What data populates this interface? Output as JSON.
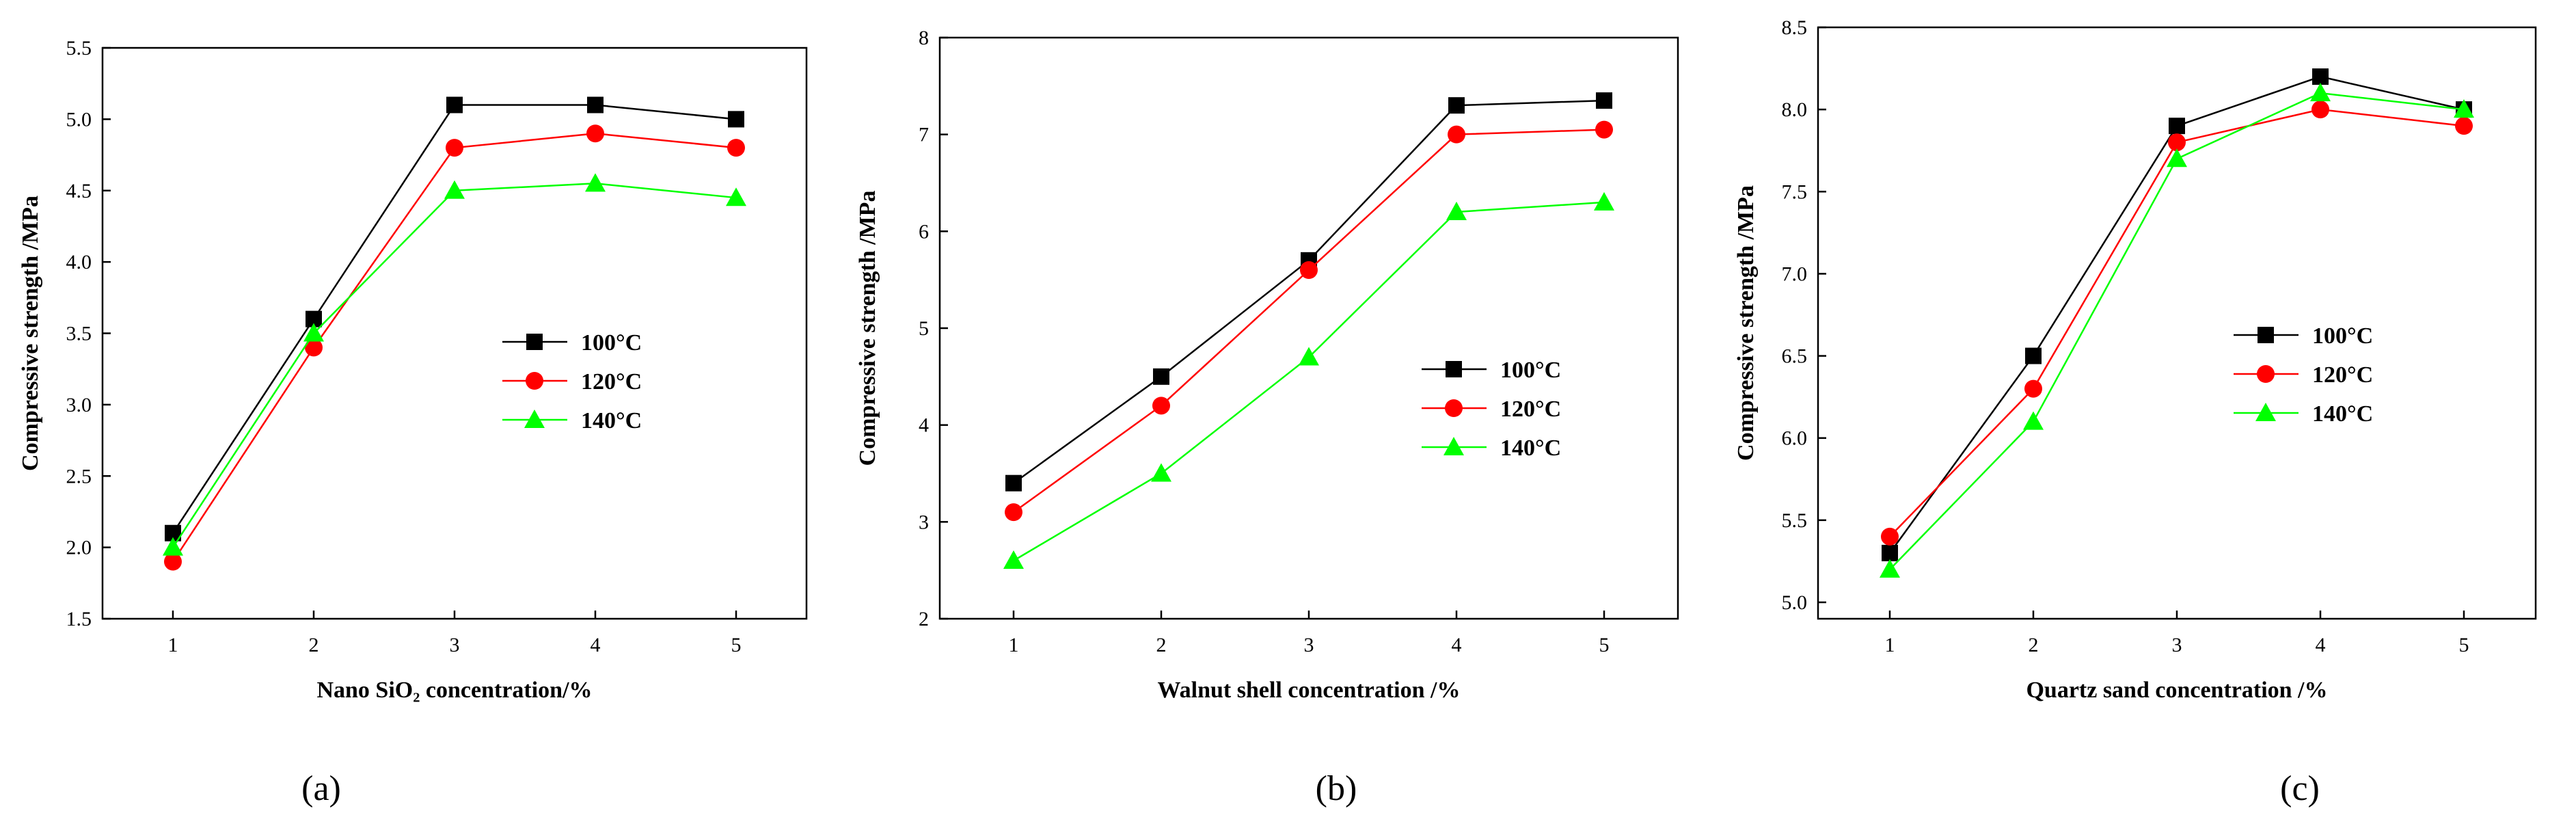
{
  "colors": {
    "series_100": "#000000",
    "series_120": "#ff0000",
    "series_140": "#00ff00",
    "axis": "#000000"
  },
  "chart_data": [
    {
      "type": "line",
      "panel_label": "(a)",
      "xlabel": "Nano SiO₂ concentration/%",
      "ylabel": "Compressive strength /MPa",
      "x": [
        1,
        2,
        3,
        4,
        5
      ],
      "xlim": [
        0.5,
        5.5
      ],
      "ylim": [
        1.5,
        5.5
      ],
      "yticks": [
        "1.5",
        "2.0",
        "2.5",
        "3.0",
        "3.5",
        "4.0",
        "4.5",
        "5.0",
        "5.5"
      ],
      "legend_position": "center-right",
      "series": [
        {
          "name": "100°C",
          "marker": "square",
          "values": [
            2.1,
            3.6,
            5.1,
            5.1,
            5.0
          ]
        },
        {
          "name": "120°C",
          "marker": "circle",
          "values": [
            1.9,
            3.4,
            4.8,
            4.9,
            4.8
          ]
        },
        {
          "name": "140°C",
          "marker": "triangle",
          "values": [
            2.0,
            3.5,
            4.5,
            4.55,
            4.45
          ]
        }
      ]
    },
    {
      "type": "line",
      "panel_label": "(b)",
      "xlabel": "Walnut shell concentration /%",
      "ylabel": "Compressive strength /MPa",
      "x": [
        1,
        2,
        3,
        4,
        5
      ],
      "xlim": [
        0.5,
        5.5
      ],
      "ylim": [
        2,
        8
      ],
      "yticks": [
        "2",
        "3",
        "4",
        "5",
        "6",
        "7",
        "8"
      ],
      "legend_position": "center-right",
      "series": [
        {
          "name": "100°C",
          "marker": "square",
          "values": [
            3.4,
            4.5,
            5.7,
            7.3,
            7.35
          ]
        },
        {
          "name": "120°C",
          "marker": "circle",
          "values": [
            3.1,
            4.2,
            5.6,
            7.0,
            7.05
          ]
        },
        {
          "name": "140°C",
          "marker": "triangle",
          "values": [
            2.6,
            3.5,
            4.7,
            6.2,
            6.3
          ]
        }
      ]
    },
    {
      "type": "line",
      "panel_label": "(c)",
      "xlabel": "Quartz sand concentration /%",
      "ylabel": "Compressive strength /MPa",
      "x": [
        1,
        2,
        3,
        4,
        5
      ],
      "xlim": [
        0.5,
        5.5
      ],
      "ylim": [
        4.9,
        8.5
      ],
      "yticks": [
        "5.0",
        "5.5",
        "6.0",
        "6.5",
        "7.0",
        "7.5",
        "8.0",
        "8.5"
      ],
      "legend_position": "center",
      "series": [
        {
          "name": "100°C",
          "marker": "square",
          "values": [
            5.3,
            6.5,
            7.9,
            8.2,
            8.0
          ]
        },
        {
          "name": "120°C",
          "marker": "circle",
          "values": [
            5.4,
            6.3,
            7.8,
            8.0,
            7.9
          ]
        },
        {
          "name": "140°C",
          "marker": "triangle",
          "values": [
            5.2,
            6.1,
            7.7,
            8.1,
            8.0
          ]
        }
      ]
    }
  ]
}
